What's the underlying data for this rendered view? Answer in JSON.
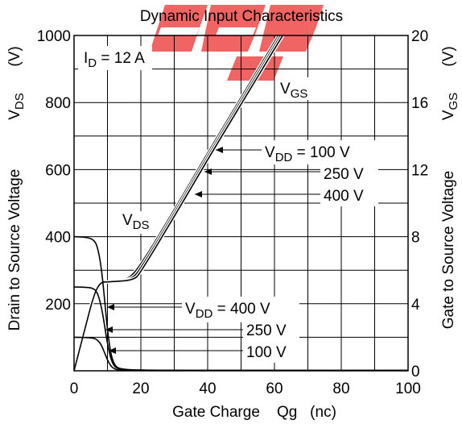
{
  "chart_data": {
    "type": "line",
    "title": "Dynamic Input Characteristics",
    "xlabel": "Gate Charge    Qg   (nc)",
    "ylabel_left": "Drain to Source Voltage",
    "ylabel_left_unit": "V",
    "ylabel_right": "Gate to Source Voltage",
    "ylabel_right_unit": "V",
    "xlim": [
      0,
      100
    ],
    "ylim_left": [
      0,
      1000
    ],
    "ylim_right": [
      0,
      20
    ],
    "x_ticks": [
      0,
      20,
      40,
      60,
      80,
      100
    ],
    "y_left_ticks": [
      200,
      400,
      600,
      800,
      1000
    ],
    "y_right_ticks": [
      0,
      4,
      8,
      12,
      16,
      20
    ],
    "grid": true,
    "condition": "I",
    "condition_sub": "D",
    "condition_value": " = 12 A",
    "vgs_label": "V",
    "vgs_label_sub": "GS",
    "vds_label": "V",
    "vds_label_sub": "DS",
    "vdd_upper": {
      "prefix": "V",
      "sub": "DD",
      "first": " = 100 V",
      "second": "250 V",
      "third": "400 V"
    },
    "vdd_lower": {
      "prefix": "V",
      "sub": "DD",
      "first": " = 400 V",
      "second": "250 V",
      "third": "100 V"
    },
    "series": [
      {
        "name": "V_GS, V_DD = 100 V",
        "axis": "right",
        "x": [
          0,
          3,
          6,
          8,
          10,
          16,
          20,
          30,
          40,
          50,
          60,
          66
        ],
        "y": [
          0,
          2.3,
          4.6,
          5.3,
          5.3,
          5.4,
          6.3,
          9.6,
          13.0,
          16.3,
          19.6,
          21.6
        ]
      },
      {
        "name": "V_GS, V_DD = 250 V",
        "axis": "right",
        "x": [
          0,
          3,
          6,
          8,
          10,
          17,
          20,
          30,
          40,
          50,
          60,
          67
        ],
        "y": [
          0,
          2.3,
          4.6,
          5.3,
          5.3,
          5.4,
          6.1,
          9.4,
          12.8,
          16.1,
          19.4,
          21.7
        ]
      },
      {
        "name": "V_GS, V_DD = 400 V",
        "axis": "right",
        "x": [
          0,
          3,
          6,
          8,
          10,
          18,
          20,
          30,
          40,
          50,
          60,
          68
        ],
        "y": [
          0,
          2.3,
          4.6,
          5.3,
          5.3,
          5.4,
          5.9,
          9.2,
          12.6,
          15.9,
          19.2,
          21.8
        ]
      },
      {
        "name": "V_DS, V_DD = 400 V",
        "axis": "left",
        "x": [
          0,
          4,
          6,
          7,
          8,
          9,
          10,
          11,
          12,
          13,
          15,
          20,
          40,
          60,
          100
        ],
        "y": [
          400,
          398,
          390,
          370,
          320,
          230,
          120,
          50,
          20,
          9,
          4,
          2,
          1,
          1,
          1
        ]
      },
      {
        "name": "V_DS, V_DD = 250 V",
        "axis": "left",
        "x": [
          0,
          4,
          6,
          7,
          8,
          9,
          10,
          11,
          12,
          13,
          15,
          20,
          40,
          60,
          100
        ],
        "y": [
          250,
          249,
          245,
          232,
          200,
          145,
          80,
          35,
          14,
          7,
          3,
          2,
          1,
          1,
          1
        ]
      },
      {
        "name": "V_DS, V_DD = 100 V",
        "axis": "left",
        "x": [
          0,
          4,
          6,
          7,
          8,
          9,
          10,
          11,
          12,
          13,
          15,
          20,
          40,
          60,
          100
        ],
        "y": [
          100,
          99,
          97,
          92,
          80,
          58,
          32,
          14,
          6,
          3,
          2,
          1,
          1,
          1,
          1
        ]
      }
    ]
  }
}
